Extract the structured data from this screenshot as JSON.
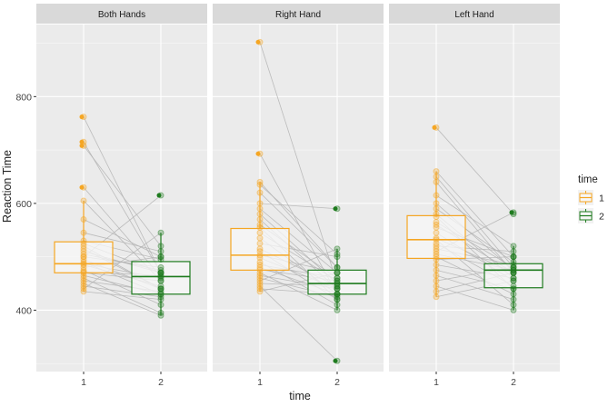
{
  "chart_data": {
    "type": "boxplot",
    "xlabel": "time",
    "ylabel": "Reaction Time",
    "ylim": [
      285,
      935
    ],
    "yticks": [
      400,
      600,
      800
    ],
    "categories": [
      "1",
      "2"
    ],
    "colors": {
      "1": "#F5A623",
      "2": "#1E7B1E",
      "panel_bg": "#EBEBEB",
      "strip_bg": "#D9D9D9",
      "grid": "#FFFFFF",
      "lines": "#B3B3B3"
    },
    "legend": {
      "title": "time",
      "position": "right",
      "entries": [
        "1",
        "2"
      ]
    },
    "panels": [
      {
        "name": "Both Hands",
        "box": {
          "1": {
            "q1": 470,
            "median": 487,
            "q3": 528,
            "whisker_low": 435,
            "whisker_high": 605
          },
          "2": {
            "q1": 430,
            "median": 463,
            "q3": 491,
            "whisker_low": 390,
            "whisker_high": 545
          }
        },
        "outliers": {
          "1": [
            762,
            715,
            708,
            630
          ],
          "2": [
            615
          ]
        },
        "pairs": [
          [
            762,
            470
          ],
          [
            715,
            470
          ],
          [
            708,
            520
          ],
          [
            630,
            463
          ],
          [
            605,
            455
          ],
          [
            570,
            500
          ],
          [
            545,
            510
          ],
          [
            530,
            495
          ],
          [
            525,
            470
          ],
          [
            515,
            440
          ],
          [
            505,
            475
          ],
          [
            500,
            480
          ],
          [
            495,
            440
          ],
          [
            490,
            430
          ],
          [
            487,
            460
          ],
          [
            485,
            445
          ],
          [
            480,
            500
          ],
          [
            475,
            410
          ],
          [
            472,
            465
          ],
          [
            470,
            455
          ],
          [
            465,
            430
          ],
          [
            460,
            395
          ],
          [
            455,
            435
          ],
          [
            450,
            390
          ],
          [
            445,
            425
          ],
          [
            440,
            545
          ],
          [
            435,
            420
          ],
          [
            500,
            615
          ],
          [
            520,
            440
          ],
          [
            510,
            470
          ]
        ]
      },
      {
        "name": "Right Hand",
        "box": {
          "1": {
            "q1": 475,
            "median": 503,
            "q3": 553,
            "whisker_low": 435,
            "whisker_high": 640
          },
          "2": {
            "q1": 430,
            "median": 450,
            "q3": 475,
            "whisker_low": 400,
            "whisker_high": 515
          }
        },
        "outliers": {
          "1": [
            902,
            693
          ],
          "2": [
            590,
            305
          ]
        },
        "pairs": [
          [
            902,
            450
          ],
          [
            693,
            430
          ],
          [
            640,
            480
          ],
          [
            635,
            505
          ],
          [
            600,
            590
          ],
          [
            590,
            470
          ],
          [
            570,
            440
          ],
          [
            560,
            460
          ],
          [
            555,
            420
          ],
          [
            545,
            455
          ],
          [
            535,
            430
          ],
          [
            525,
            500
          ],
          [
            515,
            445
          ],
          [
            510,
            420
          ],
          [
            503,
            470
          ],
          [
            498,
            440
          ],
          [
            490,
            410
          ],
          [
            485,
            460
          ],
          [
            480,
            430
          ],
          [
            476,
            455
          ],
          [
            470,
            400
          ],
          [
            465,
            440
          ],
          [
            460,
            425
          ],
          [
            455,
            515
          ],
          [
            450,
            445
          ],
          [
            445,
            305
          ],
          [
            440,
            430
          ],
          [
            435,
            470
          ],
          [
            620,
            480
          ],
          [
            580,
            450
          ]
        ]
      },
      {
        "name": "Left Hand",
        "box": {
          "1": {
            "q1": 497,
            "median": 532,
            "q3": 577,
            "whisker_low": 425,
            "whisker_high": 660
          },
          "2": {
            "q1": 442,
            "median": 475,
            "q3": 487,
            "whisker_low": 400,
            "whisker_high": 520
          }
        },
        "outliers": {
          "1": [
            742
          ],
          "2": [
            583
          ]
        },
        "pairs": [
          [
            742,
            580
          ],
          [
            660,
            500
          ],
          [
            650,
            480
          ],
          [
            640,
            470
          ],
          [
            615,
            520
          ],
          [
            600,
            475
          ],
          [
            590,
            490
          ],
          [
            580,
            460
          ],
          [
            575,
            440
          ],
          [
            565,
            480
          ],
          [
            555,
            500
          ],
          [
            545,
            455
          ],
          [
            535,
            470
          ],
          [
            532,
            410
          ],
          [
            525,
            445
          ],
          [
            515,
            485
          ],
          [
            505,
            475
          ],
          [
            500,
            430
          ],
          [
            495,
            500
          ],
          [
            485,
            460
          ],
          [
            475,
            440
          ],
          [
            465,
            420
          ],
          [
            455,
            480
          ],
          [
            445,
            400
          ],
          [
            435,
            470
          ],
          [
            425,
            455
          ],
          [
            520,
            510
          ],
          [
            510,
            583
          ],
          [
            560,
            470
          ]
        ]
      }
    ]
  }
}
